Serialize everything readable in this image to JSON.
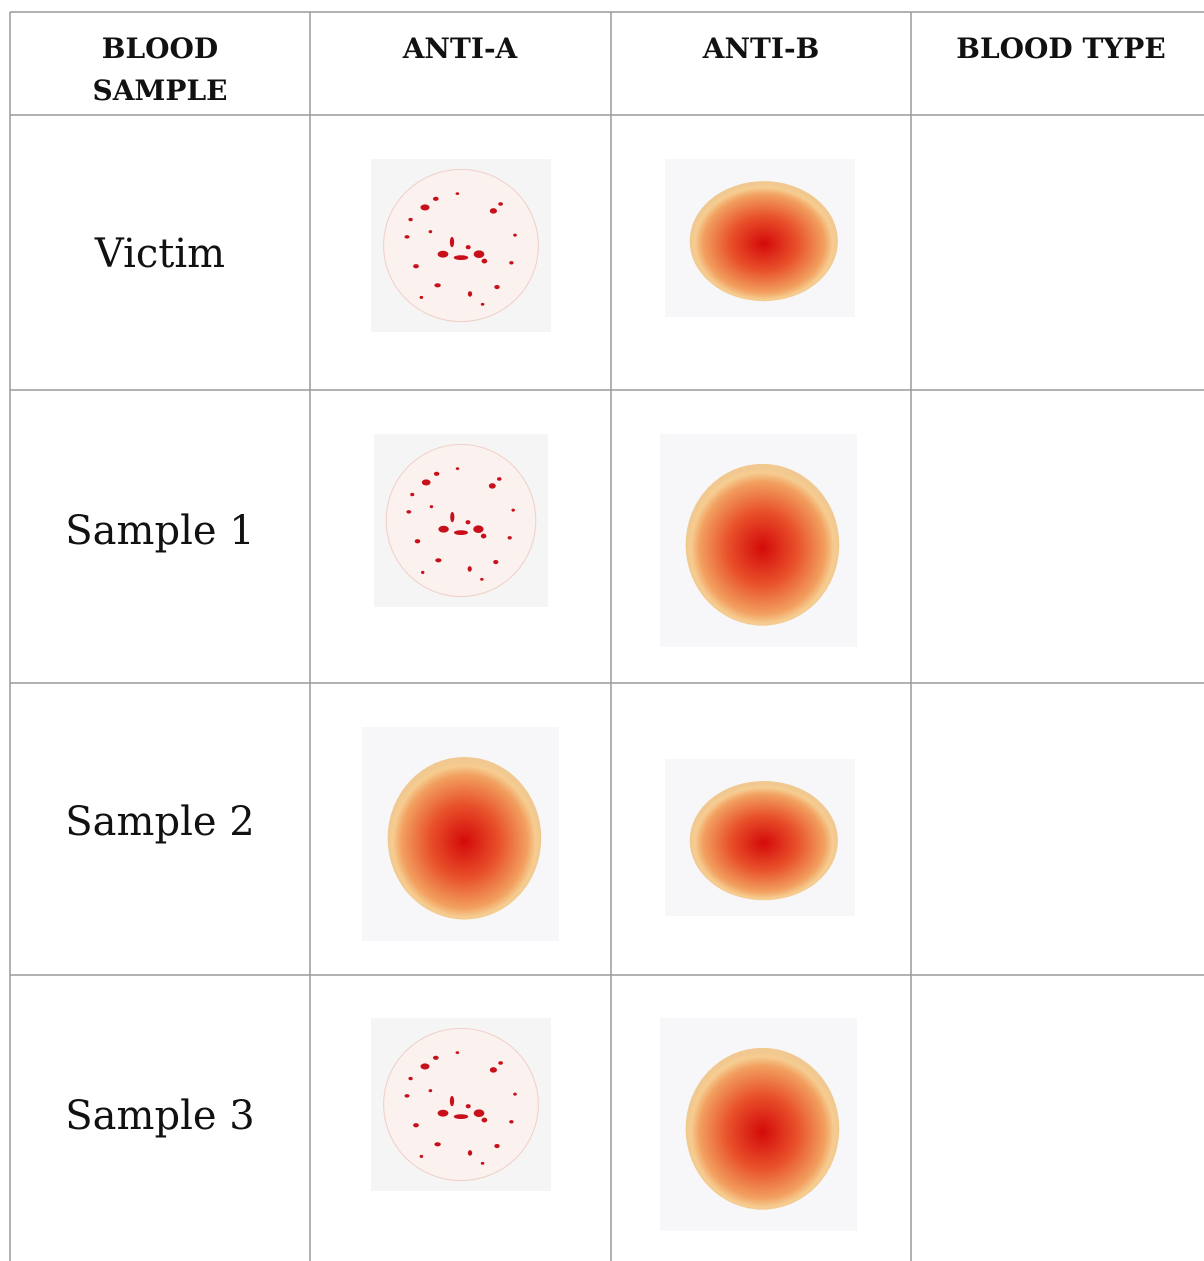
{
  "table": {
    "header": [
      "BLOOD SAMPLE",
      "ANTI-A",
      "ANTI-B",
      "BLOOD TYPE"
    ],
    "rows": [
      "Victim",
      "Sample 1",
      "Sample 2",
      "Sample 3"
    ]
  }
}
